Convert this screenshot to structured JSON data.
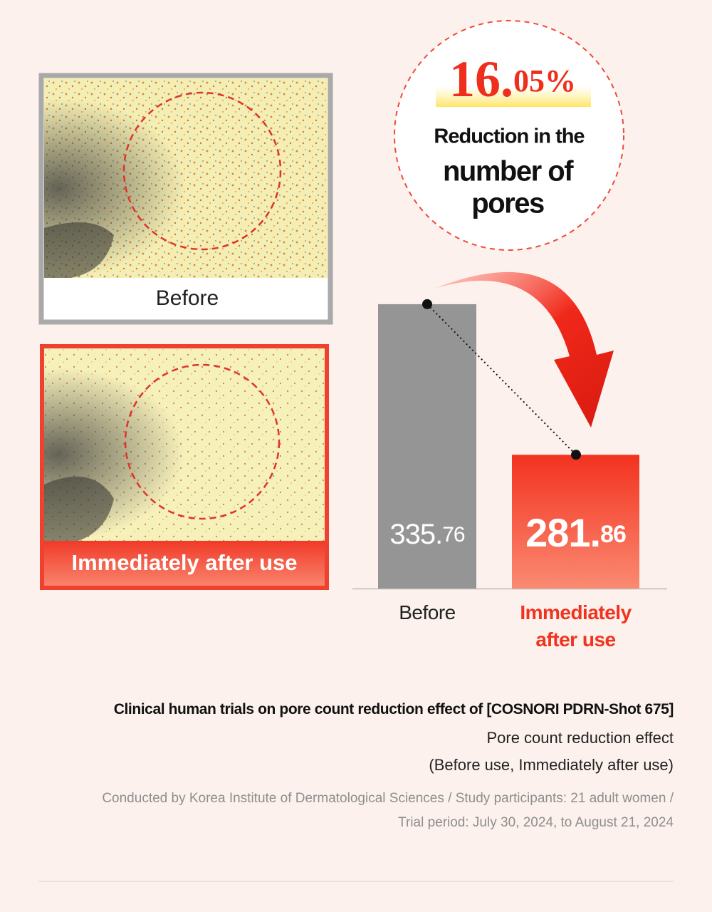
{
  "chart_data": {
    "type": "bar",
    "categories": [
      "Before",
      "Immediately after use"
    ],
    "values": [
      335.76,
      281.86
    ],
    "colors": [
      "#959595",
      "#f2321f"
    ],
    "ylim": [
      234,
      400
    ]
  },
  "photos": {
    "before_label": "Before",
    "after_label": "Immediately after use"
  },
  "badge": {
    "percent": "16.05%",
    "line1": "Reduction in the",
    "line2": "number of",
    "line3": "pores"
  },
  "footer": {
    "title": "Clinical human trials on pore count reduction effect of [COSNORI PDRN-Shot 675]",
    "line1": "Pore count reduction effect",
    "line2": "(Before use, Immediately after use)",
    "note1": "Conducted by Korea Institute of Dermatological Sciences / Study participants: 21 adult women /",
    "note2": "Trial period: July 30, 2024, to August 21, 2024"
  }
}
